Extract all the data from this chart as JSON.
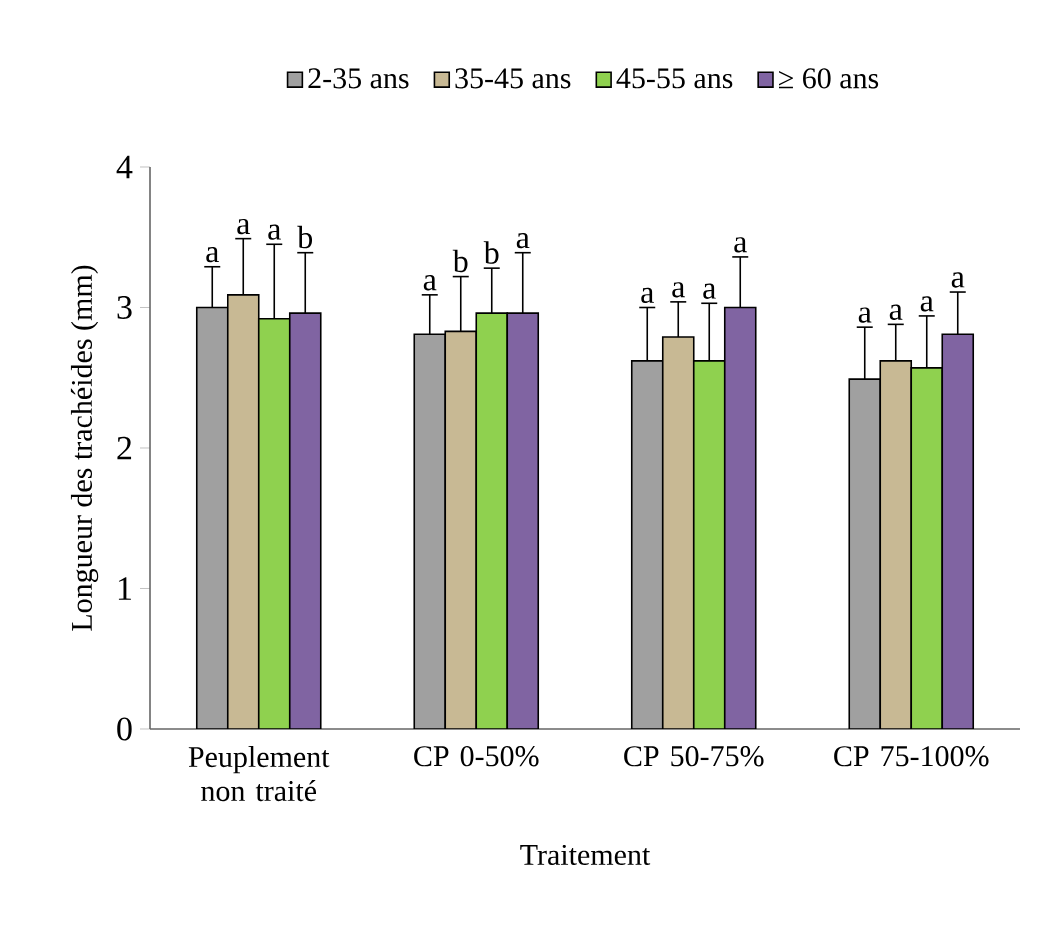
{
  "chart_data": {
    "type": "bar",
    "xlabel": "Traitement",
    "ylabel": "Longueur des trachéides (mm)",
    "categories": [
      "Peuplement non traité",
      "CP 0-50%",
      "CP 50-75%",
      "CP 75-100%"
    ],
    "ylim": [
      0,
      4
    ],
    "yticks": [
      0,
      1,
      2,
      3,
      4
    ],
    "legend": "top",
    "series": [
      {
        "name": "2-35 ans",
        "color": "#a0a0a0",
        "values": [
          3.0,
          2.81,
          2.62,
          2.49
        ],
        "errors": [
          0.29,
          0.28,
          0.38,
          0.37
        ],
        "value_labels": [
          "a",
          "a",
          "a",
          "a"
        ]
      },
      {
        "name": "35-45 ans",
        "color": "#c8b994",
        "values": [
          3.09,
          2.83,
          2.79,
          2.62
        ],
        "errors": [
          0.4,
          0.39,
          0.25,
          0.26
        ],
        "value_labels": [
          "a",
          "b",
          "a",
          "a"
        ]
      },
      {
        "name": "45-55 ans",
        "color": "#8fd14f",
        "values": [
          2.92,
          2.96,
          2.62,
          2.57
        ],
        "errors": [
          0.53,
          0.32,
          0.41,
          0.37
        ],
        "value_labels": [
          "a",
          "b",
          "a",
          "a"
        ]
      },
      {
        "name": "≥ 60 ans",
        "color": "#8064a2",
        "values": [
          2.96,
          2.96,
          3.0,
          2.81
        ],
        "errors": [
          0.43,
          0.43,
          0.36,
          0.3
        ],
        "value_labels": [
          "b",
          "a",
          "a",
          "a"
        ]
      }
    ]
  }
}
